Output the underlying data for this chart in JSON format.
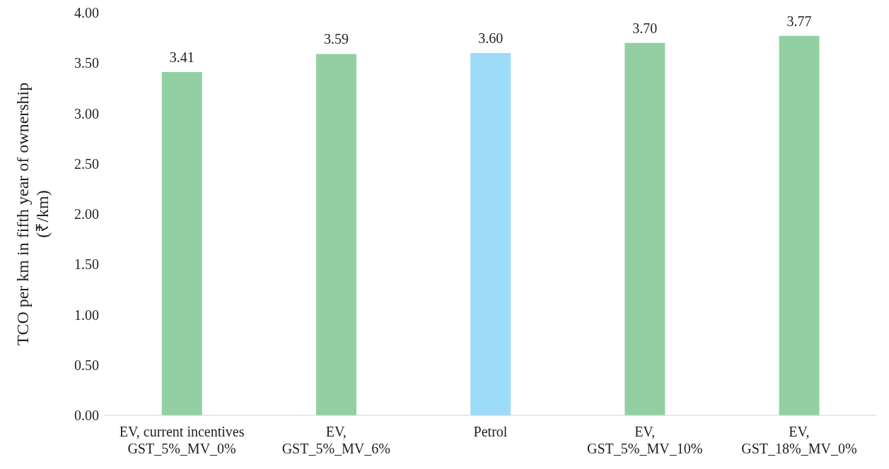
{
  "chart_data": {
    "type": "bar",
    "ylabel": "TCO per km in fifth year of ownership\n(₹/km)",
    "categories": [
      "EV, current incentives\nGST_5%_MV_0%",
      "EV,\nGST_5%_MV_6%",
      "Petrol",
      "EV,\nGST_5%_MV_10%",
      "EV,\nGST_18%_MV_0%"
    ],
    "values": [
      3.41,
      3.59,
      3.6,
      3.7,
      3.77
    ],
    "value_labels": [
      "3.41",
      "3.59",
      "3.60",
      "3.70",
      "3.77"
    ],
    "colors": [
      "#92d0a4",
      "#92d0a4",
      "#9ddcf8",
      "#92d0a4",
      "#92d0a4"
    ],
    "ylim": [
      0,
      4
    ],
    "yticks": [
      {
        "value": 0,
        "label": "0.00"
      },
      {
        "value": 0.5,
        "label": "0.50"
      },
      {
        "value": 1,
        "label": "1.00"
      },
      {
        "value": 1.5,
        "label": "1.50"
      },
      {
        "value": 2,
        "label": "2.00"
      },
      {
        "value": 2.5,
        "label": "2.50"
      },
      {
        "value": 3,
        "label": "3.00"
      },
      {
        "value": 3.5,
        "label": "3.50"
      },
      {
        "value": 4,
        "label": "4.00"
      }
    ],
    "grid": false,
    "legend": false
  }
}
